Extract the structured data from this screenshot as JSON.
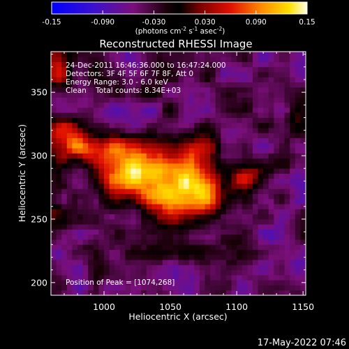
{
  "chart_data": {
    "type": "heatmap",
    "title": "Reconstructed RHESSI Image",
    "xlabel": "Heliocentric X (arcsec)",
    "ylabel": "Heliocentric Y (arcsec)",
    "xlim": [
      960,
      1152
    ],
    "ylim": [
      190,
      382
    ],
    "x_ticks": [
      1000,
      1050,
      1100,
      1150
    ],
    "y_ticks": [
      200,
      250,
      300,
      350
    ],
    "colorbar": {
      "range": [
        -0.15,
        0.15
      ],
      "ticks": [
        "-0.15",
        "-0.090",
        "-0.030",
        "0.030",
        "0.090",
        "0.15"
      ],
      "unit_pre": "(photons cm",
      "unit_sup1": "-2",
      "unit_mid1": " s",
      "unit_sup2": "-1",
      "unit_mid2": " asec",
      "unit_sup3": "-2",
      "unit_post": ")"
    },
    "annotations": [
      "24-Dec-2011 16:46:36.000 to 16:47:24.000",
      "Detectors: 3F 4F 5F 6F 7F 8F, Att 0",
      "Energy Range: 3.0 - 6.0 keV",
      "Clean    Total counts: 8.34E+03"
    ],
    "peak_label": "Position of Peak = [1074,268]",
    "peak": [
      1074,
      268
    ],
    "blobs": [
      {
        "x": 1050,
        "y": 278,
        "sx": 26,
        "sy": 16,
        "a": 0.16
      },
      {
        "x": 1074,
        "y": 268,
        "sx": 14,
        "sy": 10,
        "a": 0.06
      },
      {
        "x": 1018,
        "y": 292,
        "sx": 20,
        "sy": 12,
        "a": 0.1
      },
      {
        "x": 990,
        "y": 306,
        "sx": 18,
        "sy": 9,
        "a": 0.09
      },
      {
        "x": 968,
        "y": 318,
        "sx": 12,
        "sy": 10,
        "a": 0.08
      },
      {
        "x": 1075,
        "y": 308,
        "sx": 10,
        "sy": 10,
        "a": 0.06
      },
      {
        "x": 1110,
        "y": 285,
        "sx": 12,
        "sy": 8,
        "a": 0.07
      },
      {
        "x": 1058,
        "y": 252,
        "sx": 16,
        "sy": 8,
        "a": 0.05
      },
      {
        "x": 965,
        "y": 370,
        "sx": 10,
        "sy": 18,
        "a": 0.07
      },
      {
        "x": 963,
        "y": 262,
        "sx": 6,
        "sy": 14,
        "a": 0.05
      },
      {
        "x": 1140,
        "y": 330,
        "sx": 10,
        "sy": 8,
        "a": 0.03
      }
    ],
    "background": -0.045
  },
  "footer": {
    "timestamp": "17-May-2022 07:46"
  }
}
